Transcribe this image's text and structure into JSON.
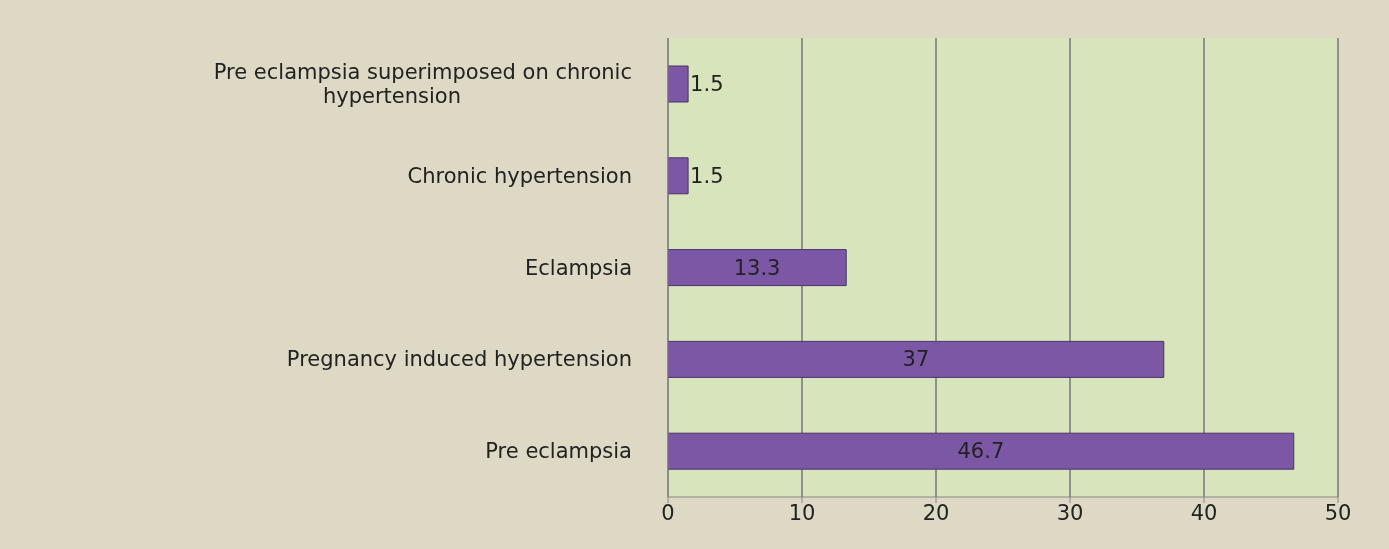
{
  "chart_data": {
    "type": "bar",
    "orientation": "horizontal",
    "categories": [
      "Pre eclampsia superimposed on chronic hypertension",
      "Chronic hypertension",
      "Eclampsia",
      "Pregnancy induced hypertension",
      "Pre eclampsia"
    ],
    "values": [
      1.5,
      1.5,
      13.3,
      37,
      46.7
    ],
    "color": "#7b57a6",
    "xlim": [
      0,
      50
    ],
    "xticks": [
      0,
      10,
      20,
      30,
      40,
      50
    ],
    "grid": "x",
    "data_labels": true
  }
}
